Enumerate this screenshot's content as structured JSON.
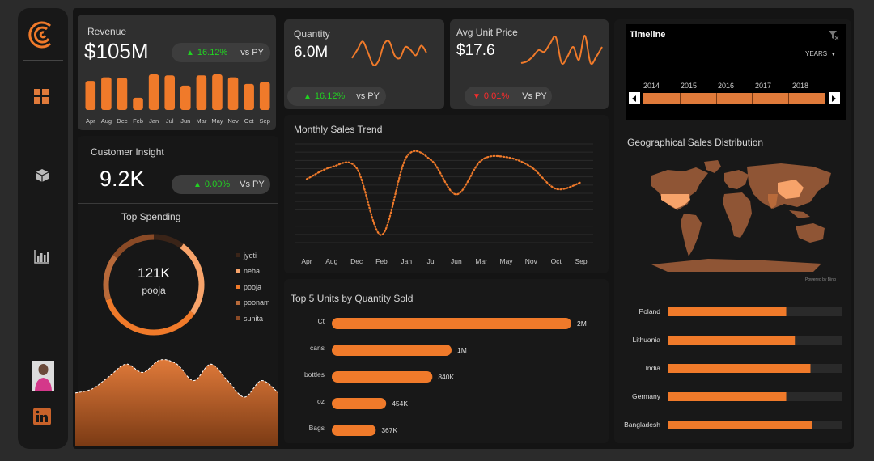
{
  "colors": {
    "accent": "#f07a2a",
    "bg": "#141414",
    "panel": "#2f2f2f",
    "up": "#22d122",
    "down": "#ff2b2b"
  },
  "sidebar": {
    "icons": [
      "logo-icon",
      "dashboard-icon",
      "box-icon",
      "bar-chart-icon",
      "avatar",
      "linkedin-icon"
    ]
  },
  "revenue": {
    "title": "Revenue",
    "value": "$105M",
    "change_arrow": "▲",
    "change": "16.12%",
    "compare": "vs PY",
    "chart_data": {
      "type": "bar",
      "categories": [
        "Apr",
        "Aug",
        "Dec",
        "Feb",
        "Jan",
        "Jul",
        "Jun",
        "Mar",
        "May",
        "Nov",
        "Oct",
        "Sep"
      ],
      "values": [
        8.8,
        9.9,
        9.8,
        3.7,
        10.8,
        10.5,
        7.4,
        10.5,
        10.8,
        9.9,
        7.9,
        8.5
      ]
    }
  },
  "quantity": {
    "title": "Quantity",
    "value": "6.0M",
    "change_arrow": "▲",
    "change": "16.12%",
    "compare": "vs PY",
    "spark": [
      0.3,
      0.6,
      0.9,
      0.5,
      0.05,
      0.2,
      0.8,
      0.9,
      0.4,
      0.3,
      0.7,
      0.6,
      0.4,
      0.75,
      0.5
    ]
  },
  "avg_price": {
    "title": "Avg Unit Price",
    "value": "$17.6",
    "change_arrow": "▼",
    "change": "0.01%",
    "compare": "Vs PY",
    "spark": [
      0.1,
      0.15,
      0.3,
      0.5,
      0.45,
      0.7,
      0.9,
      0.1,
      0.3,
      0.6,
      0.2,
      0.95,
      0.1,
      0.3,
      0.6
    ]
  },
  "customer": {
    "title": "Customer Insight",
    "value": "9.2K",
    "change_arrow": "▲",
    "change": "0.00%",
    "compare": "Vs PY"
  },
  "top_spending": {
    "title": "Top Spending",
    "center_value": "121K",
    "center_label": "pooja",
    "legend": [
      {
        "name": "jyoti",
        "color": "#3a2418"
      },
      {
        "name": "neha",
        "color": "#f7a36a"
      },
      {
        "name": "pooja",
        "color": "#f07a2a"
      },
      {
        "name": "poonam",
        "color": "#b86a3a"
      },
      {
        "name": "sunita",
        "color": "#8a4a26"
      }
    ],
    "chart_data": {
      "type": "pie",
      "labels": [
        "jyoti",
        "neha",
        "pooja",
        "poonam",
        "sunita"
      ],
      "values": [
        10,
        25,
        35,
        15,
        15
      ]
    },
    "area": [
      0.55,
      0.6,
      0.75,
      0.9,
      0.8,
      0.95,
      0.9,
      0.7,
      0.9,
      0.7,
      0.5,
      0.7,
      0.55
    ]
  },
  "monthly_trend": {
    "title": "Monthly Sales Trend",
    "chart_data": {
      "type": "line",
      "categories": [
        "Apr",
        "Aug",
        "Dec",
        "Feb",
        "Jan",
        "Jul",
        "Jun",
        "Mar",
        "May",
        "Nov",
        "Oct",
        "Sep"
      ],
      "values": [
        8.8,
        9.9,
        9.8,
        3.7,
        10.8,
        10.5,
        7.4,
        10.5,
        10.8,
        9.9,
        7.9,
        8.5
      ],
      "ylim": [
        3,
        12
      ]
    }
  },
  "top_units": {
    "title": "Top 5 Units by Quantity Sold",
    "chart_data": {
      "type": "bar",
      "categories": [
        "Ct",
        "cans",
        "bottles",
        "oz",
        "Bags"
      ],
      "values": [
        2000000,
        1000000,
        840000,
        454000,
        367000
      ],
      "labels": [
        "2M",
        "1M",
        "840K",
        "454K",
        "367K"
      ]
    }
  },
  "timeline": {
    "title": "Timeline",
    "unit": "YEARS",
    "years": [
      "2014",
      "2015",
      "2016",
      "2017",
      "2018"
    ]
  },
  "geo": {
    "title": "Geographical Sales Distribution",
    "attribution": "Powered by Bing",
    "chart_data": {
      "type": "bar",
      "categories": [
        "Poland",
        "Lithuania",
        "India",
        "Germany",
        "Bangladesh"
      ],
      "values": [
        68,
        73,
        82,
        68,
        83
      ],
      "max": 100
    }
  }
}
